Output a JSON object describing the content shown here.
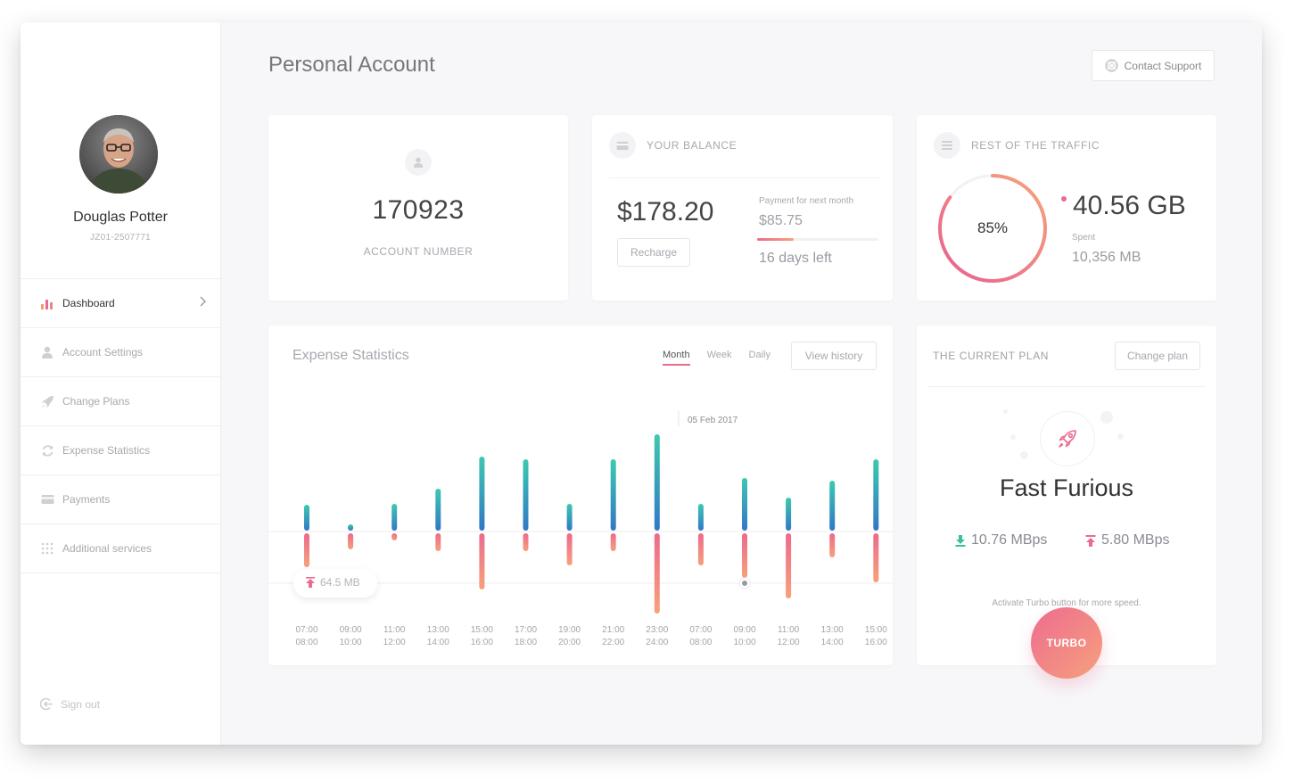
{
  "profile": {
    "name": "Douglas Potter",
    "id": "JZ01-2507771"
  },
  "nav": [
    {
      "label": "Dashboard",
      "icon": "bar-chart-icon",
      "active": true
    },
    {
      "label": "Account Settings",
      "icon": "user-icon"
    },
    {
      "label": "Change Plans",
      "icon": "rocket-icon"
    },
    {
      "label": "Expense Statistics",
      "icon": "refresh-icon"
    },
    {
      "label": "Payments",
      "icon": "credit-card-icon"
    },
    {
      "label": "Additional services",
      "icon": "grid-icon"
    }
  ],
  "signout": "Sign out",
  "header": {
    "title": "Personal Account",
    "support_label": "Contact Support"
  },
  "account": {
    "number": "170923",
    "label": "ACCOUNT NUMBER"
  },
  "balance": {
    "title": "YOUR BALANCE",
    "amount": "$178.20",
    "recharge_label": "Recharge",
    "next_payment_label": "Payment for next month",
    "next_payment_amount": "$85.75",
    "days_left": "16 days left",
    "progress_percent": 30
  },
  "traffic": {
    "title": "REST OF THE TRAFFIC",
    "percent": 85,
    "percent_label": "85%",
    "remaining": "40.56 GB",
    "spent_label": "Spent",
    "spent_value": "10,356 MB"
  },
  "stats": {
    "title": "Expense Statistics",
    "tabs": [
      "Month",
      "Week",
      "Daily"
    ],
    "active_tab": "Month",
    "history_label": "View history",
    "date_marker": "05 Feb 2017",
    "tooltip": "64.5 MB"
  },
  "chart_data": {
    "type": "bar",
    "categories": [
      [
        "07:00",
        "08:00"
      ],
      [
        "09:00",
        "10:00"
      ],
      [
        "11:00",
        "12:00"
      ],
      [
        "13:00",
        "14:00"
      ],
      [
        "15:00",
        "16:00"
      ],
      [
        "17:00",
        "18:00"
      ],
      [
        "19:00",
        "20:00"
      ],
      [
        "21:00",
        "22:00"
      ],
      [
        "23:00",
        "24:00"
      ],
      [
        "07:00",
        "08:00"
      ],
      [
        "09:00",
        "10:00"
      ],
      [
        "11:00",
        "12:00"
      ],
      [
        "13:00",
        "14:00"
      ],
      [
        "15:00",
        "16:00"
      ]
    ],
    "series": [
      {
        "values": [
          29,
          7,
          30,
          47,
          83,
          80,
          30,
          80,
          108,
          30,
          59,
          37,
          56,
          80
        ]
      },
      {
        "values": [
          38,
          18,
          8,
          20,
          63,
          20,
          36,
          20,
          90,
          36,
          50,
          73,
          27,
          55
        ]
      }
    ],
    "highlight_index": 10
  },
  "plan": {
    "title": "THE CURRENT PLAN",
    "change_label": "Change plan",
    "name": "Fast Furious",
    "download": "10.76 MBps",
    "upload": "5.80 MBps",
    "note": "Activate Turbo button for more speed.",
    "turbo_label": "TURBO"
  },
  "colors": {
    "accent_pink": "#ec6a8d",
    "accent_orange": "#f7a17b",
    "teal": "#3dc9b0",
    "blue": "#3277c6"
  }
}
